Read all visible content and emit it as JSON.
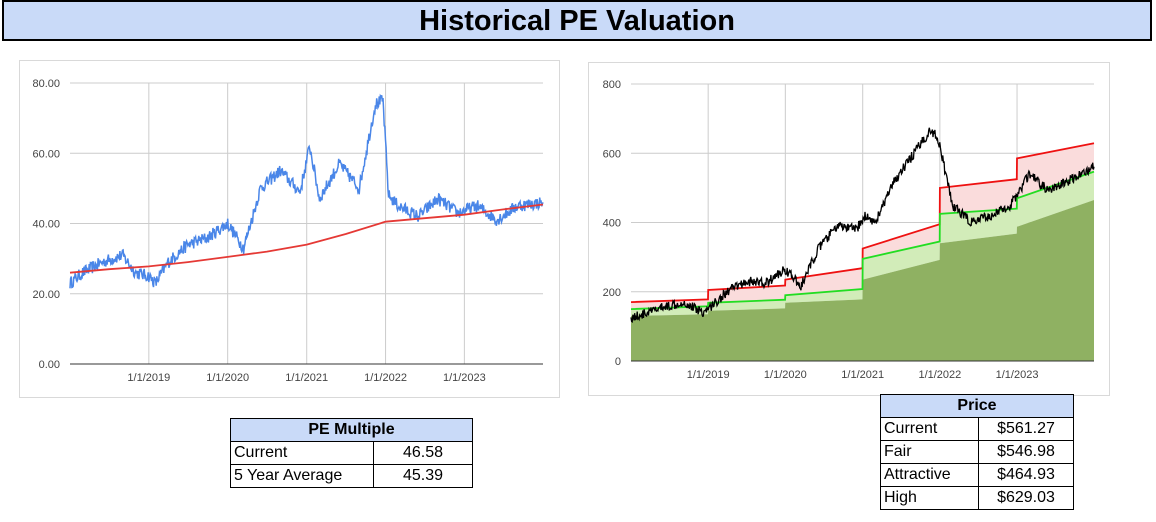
{
  "page": {
    "title": "Historical PE Valuation"
  },
  "pe_table": {
    "header": "PE Multiple",
    "rows": [
      {
        "label": "Current",
        "value": "46.58"
      },
      {
        "label": "5 Year Average",
        "value": "45.39"
      }
    ]
  },
  "price_table": {
    "header": "Price",
    "rows": [
      {
        "label": "Current",
        "value": "$561.27"
      },
      {
        "label": "Fair",
        "value": "$546.98"
      },
      {
        "label": "Attractive",
        "value": "$464.93"
      },
      {
        "label": "High",
        "value": "$629.03"
      }
    ]
  },
  "chart_data": [
    {
      "type": "line",
      "x_range": [
        "2018-01-01",
        "2023-12-31"
      ],
      "ylim": [
        0,
        80
      ],
      "y_ticks": [
        "0.00",
        "20.00",
        "40.00",
        "60.00",
        "80.00"
      ],
      "x_ticks": [
        "1/1/2019",
        "1/1/2020",
        "1/1/2021",
        "1/1/2022",
        "1/1/2023"
      ],
      "grid": true,
      "colors": {
        "pe": "#4a86e8",
        "average": "#e53935"
      },
      "series": [
        {
          "key": "pe",
          "x": [
            "2018-01-01",
            "2018-03-01",
            "2018-06-01",
            "2018-09-01",
            "2018-11-01",
            "2019-01-01",
            "2019-02-01",
            "2019-04-01",
            "2019-07-01",
            "2019-10-01",
            "2020-01-01",
            "2020-03-15",
            "2020-06-01",
            "2020-09-01",
            "2020-12-01",
            "2021-01-15",
            "2021-03-01",
            "2021-06-01",
            "2021-09-01",
            "2021-11-15",
            "2021-12-20",
            "2022-01-15",
            "2022-03-01",
            "2022-06-01",
            "2022-09-01",
            "2022-12-01",
            "2023-03-01",
            "2023-06-01",
            "2023-09-01",
            "2023-12-31"
          ],
          "y": [
            23,
            26,
            29,
            31,
            26,
            25,
            23,
            29,
            34,
            36,
            40,
            33,
            50,
            55,
            49,
            62,
            47,
            57,
            50,
            74,
            75,
            48,
            45,
            42,
            47,
            43,
            45,
            41,
            45,
            46
          ]
        },
        {
          "key": "average",
          "x": [
            "2018-01-01",
            "2018-07-01",
            "2019-01-01",
            "2019-07-01",
            "2020-01-01",
            "2020-07-01",
            "2021-01-01",
            "2021-07-01",
            "2022-01-01",
            "2022-07-01",
            "2023-01-01",
            "2023-07-01",
            "2023-12-31"
          ],
          "y": [
            26,
            27,
            27.8,
            29,
            30.5,
            32,
            34,
            37,
            40.5,
            41.5,
            42.5,
            44,
            45.4
          ]
        }
      ]
    },
    {
      "type": "area",
      "x_range": [
        "2018-01-01",
        "2023-12-31"
      ],
      "ylim": [
        0,
        800
      ],
      "y_ticks": [
        "0",
        "200",
        "400",
        "600",
        "800"
      ],
      "x_ticks": [
        "1/1/2019",
        "1/1/2020",
        "1/1/2021",
        "1/1/2022",
        "1/1/2023"
      ],
      "grid": true,
      "colors": {
        "price": "#000000",
        "high": "#ee1111",
        "fair": "#22dd22",
        "attractive_fill": "#8fb162",
        "fair_fill": "#d2ecb9",
        "high_fill": "#fadcdc"
      },
      "series": [
        {
          "key": "attractive",
          "x": [
            "2018-01-01",
            "2018-12-31",
            "2019-01-01",
            "2019-12-31",
            "2020-01-01",
            "2020-12-31",
            "2021-01-01",
            "2021-12-31",
            "2022-01-01",
            "2022-12-31",
            "2023-01-01",
            "2023-12-31"
          ],
          "y": [
            130,
            135,
            145,
            152,
            168,
            178,
            235,
            292,
            340,
            368,
            388,
            465
          ]
        },
        {
          "key": "fair",
          "x": [
            "2018-01-01",
            "2018-12-31",
            "2019-01-01",
            "2019-12-31",
            "2020-01-01",
            "2020-12-31",
            "2021-01-01",
            "2021-12-31",
            "2022-01-01",
            "2022-12-31",
            "2023-01-01",
            "2023-12-31"
          ],
          "y": [
            150,
            158,
            168,
            177,
            190,
            208,
            295,
            345,
            425,
            440,
            470,
            547
          ]
        },
        {
          "key": "high",
          "x": [
            "2018-01-01",
            "2018-12-31",
            "2019-01-01",
            "2019-12-31",
            "2020-01-01",
            "2020-12-31",
            "2021-01-01",
            "2021-12-31",
            "2022-01-01",
            "2022-12-31",
            "2023-01-01",
            "2023-12-31"
          ],
          "y": [
            170,
            178,
            205,
            218,
            235,
            268,
            325,
            395,
            500,
            525,
            585,
            629
          ]
        },
        {
          "key": "price",
          "x": [
            "2018-01-01",
            "2018-03-01",
            "2018-06-01",
            "2018-09-01",
            "2018-12-15",
            "2019-01-01",
            "2019-04-01",
            "2019-07-01",
            "2019-10-01",
            "2020-01-01",
            "2020-03-15",
            "2020-06-01",
            "2020-09-01",
            "2020-12-01",
            "2021-01-15",
            "2021-03-01",
            "2021-06-01",
            "2021-09-01",
            "2021-11-15",
            "2021-12-20",
            "2022-01-15",
            "2022-03-01",
            "2022-06-01",
            "2022-09-01",
            "2022-12-01",
            "2023-03-01",
            "2023-06-01",
            "2023-09-01",
            "2023-12-31"
          ],
          "y": [
            125,
            135,
            155,
            170,
            140,
            150,
            200,
            230,
            225,
            265,
            215,
            320,
            390,
            380,
            420,
            400,
            520,
            600,
            665,
            650,
            580,
            450,
            400,
            420,
            450,
            540,
            490,
            520,
            561
          ]
        }
      ]
    }
  ]
}
